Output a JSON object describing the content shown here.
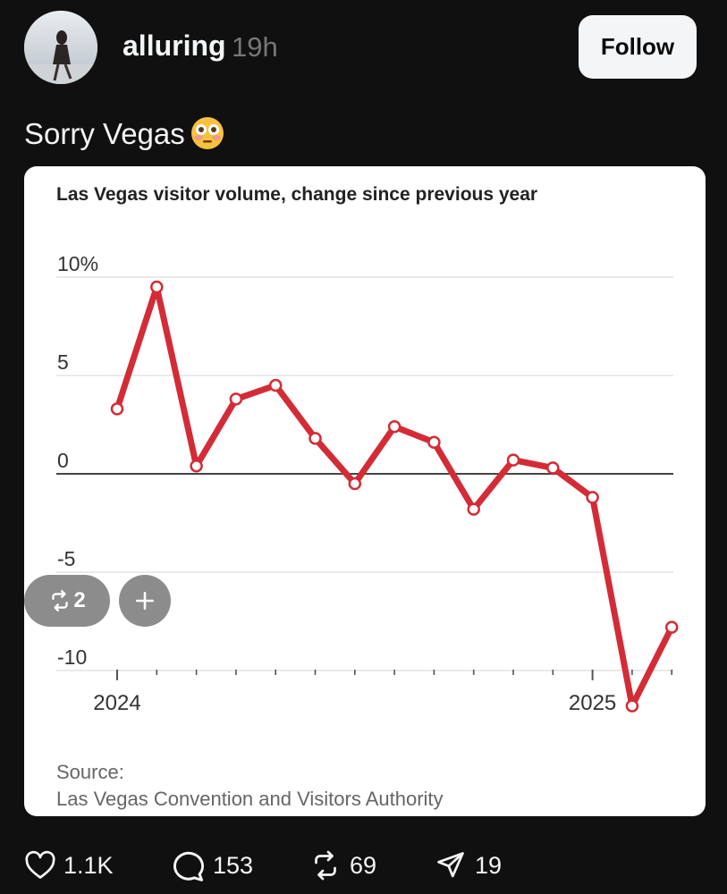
{
  "post": {
    "username": "alluring",
    "time": "19h",
    "follow_label": "Follow",
    "text": "Sorry Vegas",
    "emoji": "flushed-face"
  },
  "media": {
    "repost_count": "2",
    "add_label": "+",
    "source_label": "Source:",
    "source_text": "Las Vegas Convention and Visitors Authority"
  },
  "actions": {
    "likes": "1.1K",
    "replies": "153",
    "reposts": "69",
    "shares": "19"
  },
  "colors": {
    "background": "#101010",
    "line": "#d32c36",
    "follow_bg": "#f3f5f7"
  },
  "chart_data": {
    "type": "line",
    "title": "Las Vegas visitor volume, change since previous year",
    "y_ticks": [
      10,
      5,
      0,
      -5,
      -10
    ],
    "y_tick_labels": [
      "10%",
      "5",
      "0",
      "-5",
      "-10"
    ],
    "ylim": [
      -12,
      10
    ],
    "x_tick_labels": [
      "2024",
      "2025"
    ],
    "series": [
      {
        "values": [
          3.3,
          9.5,
          0.4,
          3.8,
          4.5,
          1.8,
          -0.5,
          2.4,
          1.6,
          -1.8,
          0.7,
          0.3,
          -1.2,
          -11.8,
          -7.8
        ]
      }
    ],
    "grid": true,
    "source": "Las Vegas Convention and Visitors Authority"
  }
}
